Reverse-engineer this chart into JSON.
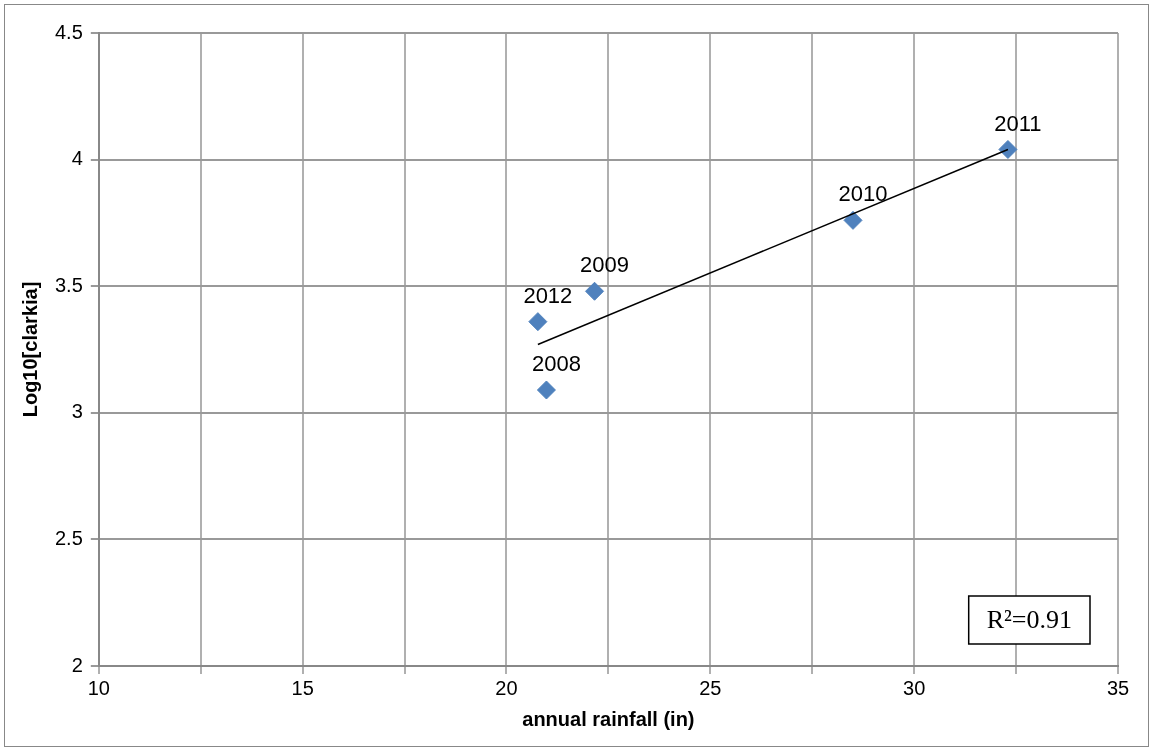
{
  "chart_data": {
    "type": "scatter",
    "xlabel": "annual rainfall (in)",
    "ylabel": "Log10[clarkia]",
    "series": [
      {
        "type": "scatter",
        "color": "#4f81bd",
        "marker": "diamond",
        "x": [
          20.98,
          22.16,
          28.5,
          32.3,
          20.77
        ],
        "values": [
          3.09,
          3.48,
          3.76,
          4.04,
          3.36
        ]
      },
      {
        "type": "line",
        "color": "#000000",
        "marker": "none",
        "x": [
          20.77,
          32.3
        ],
        "values": [
          3.27,
          4.04
        ]
      }
    ],
    "xlim": [
      10,
      35
    ],
    "xticks": [
      10,
      {
        "value": 12.5,
        "label": null
      },
      15,
      {
        "value": 17.5,
        "label": null
      },
      20,
      {
        "value": 22.5,
        "label": null
      },
      25,
      {
        "value": 27.5,
        "label": null
      },
      30,
      {
        "value": 32.5,
        "label": null
      },
      35
    ],
    "ylim": [
      2,
      4.5
    ],
    "yticks": [
      2,
      2.5,
      3,
      3.5,
      4,
      4.5
    ],
    "grid": true,
    "legend": false,
    "annotations": [
      {
        "text": "2008",
        "x": 20.98,
        "y": 3.09
      },
      {
        "text": "2009",
        "x": 22.16,
        "y": 3.48
      },
      {
        "text": "2010",
        "x": 28.5,
        "y": 3.76
      },
      {
        "text": "2011",
        "x": 32.3,
        "y": 4.04
      },
      {
        "text": "2012",
        "x": 20.77,
        "y": 3.36
      },
      "R²=0.91"
    ]
  }
}
